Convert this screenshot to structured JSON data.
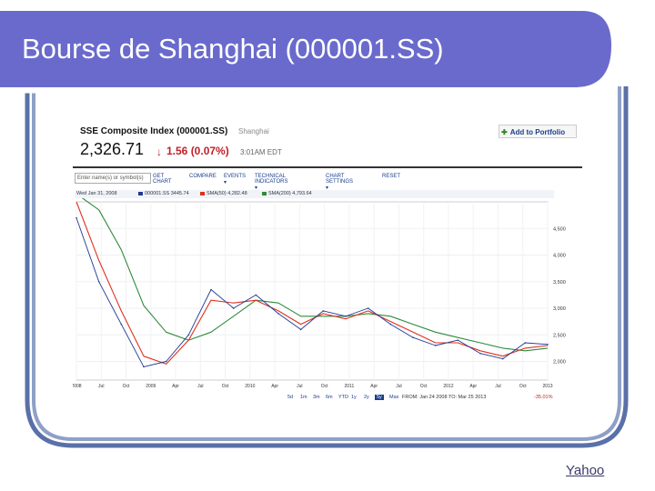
{
  "slide": {
    "title": "Bourse de Shanghai (000001.SS)",
    "source_label": "Yahoo",
    "colors": {
      "banner": "#6a6acd",
      "frame": "#8ea0c6",
      "frame_border": "#5a70a8"
    }
  },
  "quote": {
    "index_name": "SSE Composite Index (000001.SS)",
    "exchange": "Shanghai",
    "add_to_portfolio": "Add to Portfolio",
    "price": "2,326.71",
    "change": "1.56 (0.07%)",
    "direction": "down",
    "time": "3:01AM EDT"
  },
  "toolbar": {
    "search_value": "Enter name(s) or symbol(s)",
    "items": [
      "GET CHART",
      "COMPARE",
      "EVENTS ▾",
      "TECHNICAL INDICATORS ▾",
      "CHART SETTINGS ▾",
      "RESET"
    ]
  },
  "legend": {
    "date": "Wed Jan 31, 2008",
    "series": [
      {
        "name": "000001.SS 3445.74",
        "color": "#1f3a93"
      },
      {
        "name": "SMA(50) 4,282.48",
        "color": "#e03020"
      },
      {
        "name": "SMA(200) 4,793.64",
        "color": "#2e8b3a"
      }
    ]
  },
  "range": {
    "buttons": [
      "5d",
      "1m",
      "3m",
      "6m",
      "YTD",
      "1y",
      "2y",
      "5y",
      "Max"
    ],
    "active_index": 7,
    "from": "FROM: Jan 24 2008",
    "to": "TO: Mar 25 2013",
    "change_pct": "-35.01%"
  },
  "chart_data": {
    "type": "line",
    "x": [
      "2008-01",
      "2008-04",
      "2008-07",
      "2008-10",
      "2009-01",
      "2009-04",
      "2009-07",
      "2009-10",
      "2010-01",
      "2010-04",
      "2010-07",
      "2010-10",
      "2011-01",
      "2011-04",
      "2011-07",
      "2011-10",
      "2012-01",
      "2012-04",
      "2012-07",
      "2012-10",
      "2013-01",
      "2013-03"
    ],
    "x_tick_labels": [
      "2008",
      "Jul",
      "Oct",
      "2009",
      "Apr",
      "Jul",
      "Oct",
      "2010",
      "Apr",
      "Jul",
      "Oct",
      "2011",
      "Apr",
      "Jul",
      "Oct",
      "2012",
      "Apr",
      "Jul",
      "Oct",
      "2013"
    ],
    "y_tick_labels": [
      "4,500",
      "4,000",
      "3,500",
      "3,000",
      "2,500",
      "2,000"
    ],
    "ylim": [
      1650,
      5000
    ],
    "series": [
      {
        "name": "000001.SS",
        "color": "#1f3a93",
        "values": [
          4700,
          3500,
          2700,
          1900,
          2000,
          2500,
          3350,
          3000,
          3250,
          2900,
          2600,
          2950,
          2850,
          3000,
          2700,
          2450,
          2300,
          2400,
          2150,
          2050,
          2350,
          2320
        ]
      },
      {
        "name": "SMA(50)",
        "color": "#e03020",
        "values": [
          5000,
          3900,
          2950,
          2100,
          1950,
          2400,
          3150,
          3100,
          3150,
          2950,
          2700,
          2900,
          2800,
          2950,
          2750,
          2550,
          2350,
          2350,
          2200,
          2100,
          2250,
          2300
        ]
      },
      {
        "name": "SMA(200)",
        "color": "#2e8b3a",
        "values": [
          5150,
          4850,
          4100,
          3050,
          2550,
          2400,
          2550,
          2850,
          3150,
          3100,
          2850,
          2850,
          2850,
          2900,
          2850,
          2700,
          2550,
          2450,
          2350,
          2250,
          2200,
          2250
        ]
      }
    ]
  }
}
